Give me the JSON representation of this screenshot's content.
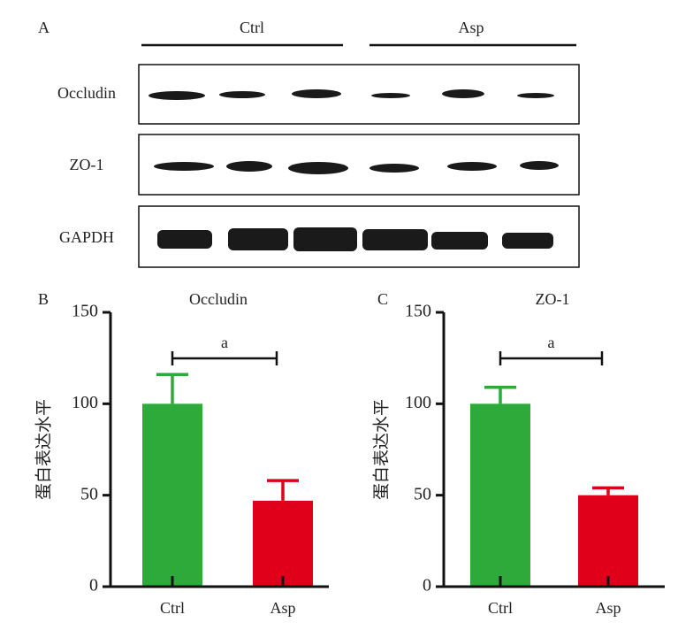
{
  "blot": {
    "panel_label": "A",
    "groups": [
      "Ctrl",
      "Asp"
    ],
    "rows": [
      "Occludin",
      "ZO-1",
      "GAPDH"
    ]
  },
  "chart_data": [
    {
      "type": "bar",
      "panel_label": "B",
      "title": "Occludin",
      "ylabel": "蛋白表达水平",
      "categories": [
        "Ctrl",
        "Asp"
      ],
      "values": [
        100,
        47
      ],
      "errors": [
        16,
        11
      ],
      "colors": [
        "#2eaa3a",
        "#e0001a"
      ],
      "ylim": [
        0,
        150
      ],
      "yticks": [
        0,
        50,
        100,
        150
      ],
      "annotation": "a"
    },
    {
      "type": "bar",
      "panel_label": "C",
      "title": "ZO-1",
      "ylabel": "蛋白表达水平",
      "categories": [
        "Ctrl",
        "Asp"
      ],
      "values": [
        100,
        50
      ],
      "errors": [
        9,
        4
      ],
      "colors": [
        "#2eaa3a",
        "#e0001a"
      ],
      "ylim": [
        0,
        150
      ],
      "yticks": [
        0,
        50,
        100,
        150
      ],
      "annotation": "a"
    }
  ]
}
